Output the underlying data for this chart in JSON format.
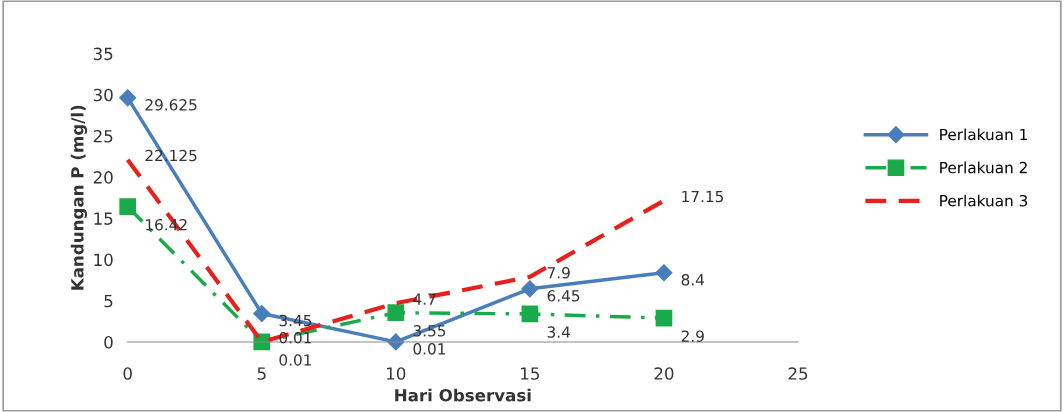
{
  "chart_data": {
    "type": "line",
    "xlabel": "Hari Observasi",
    "ylabel": "Kandungan P (mg/l)",
    "x": [
      0,
      5,
      10,
      15,
      20
    ],
    "series": [
      {
        "name": "Perlakuan 1",
        "color": "#4a7ebb",
        "values": [
          29.625,
          3.45,
          0.01,
          6.45,
          8.4
        ],
        "marker": "diamond",
        "line_style": "solid"
      },
      {
        "name": "Perlakuan 2",
        "color": "#1aaa4a",
        "values": [
          16.42,
          0.01,
          3.55,
          3.4,
          2.9
        ],
        "marker": "square",
        "line_style": "dashed"
      },
      {
        "name": "Perlakuan 3",
        "color": "#e8201c",
        "values": [
          22.125,
          0.01,
          4.7,
          7.9,
          17.15
        ],
        "marker": "none",
        "line_style": "dashed"
      }
    ],
    "xlim": [
      0,
      25
    ],
    "xticks": [
      0,
      5,
      10,
      15,
      20,
      25
    ],
    "ylim": [
      0,
      35
    ],
    "yticks": [
      0,
      5,
      10,
      15,
      20,
      25,
      30,
      35
    ],
    "grid": false,
    "legend": "right",
    "data_labels": true
  }
}
